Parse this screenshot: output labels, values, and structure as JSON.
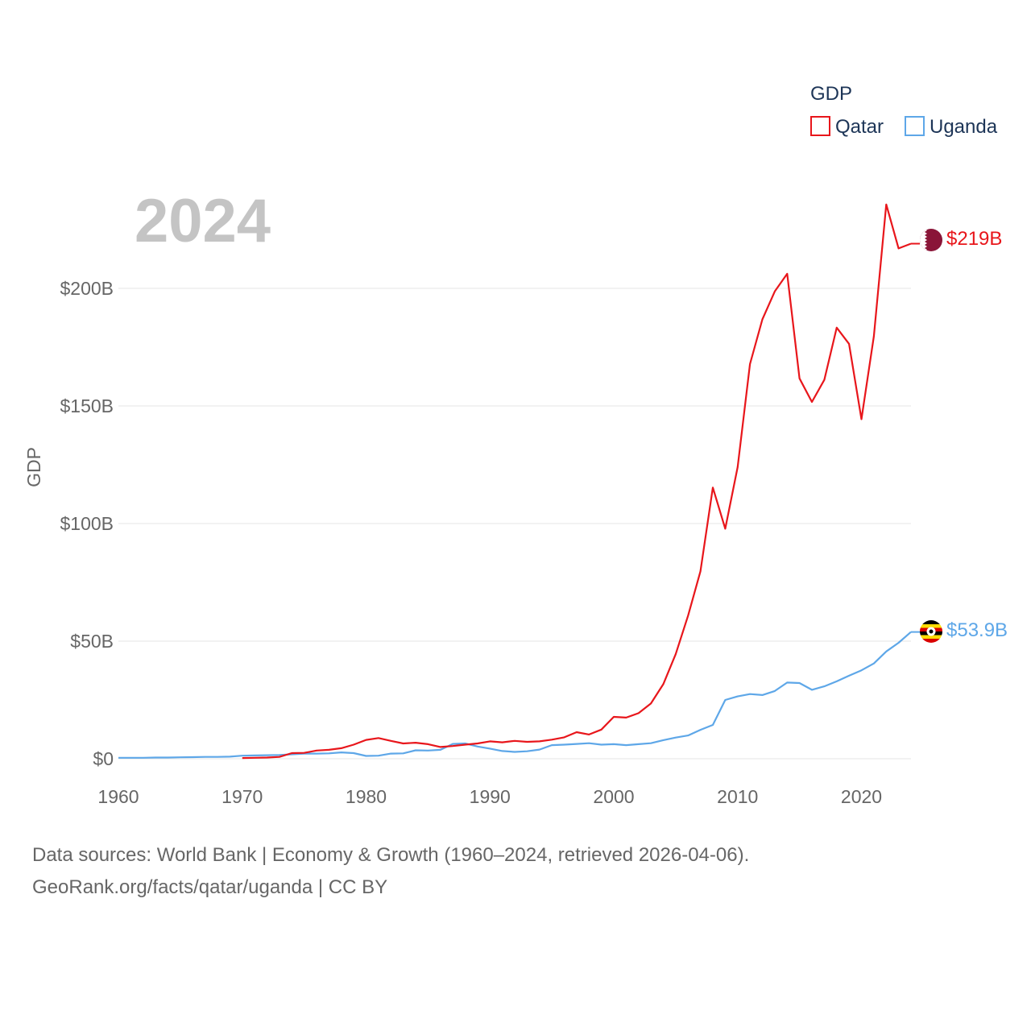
{
  "chart_data": {
    "type": "line",
    "title": "GDP",
    "year_label": "2024",
    "ylabel": "GDP",
    "xlabel": "",
    "xlim": [
      1960,
      2024
    ],
    "ylim": [
      0,
      230
    ],
    "y_ticks": [
      0,
      50,
      100,
      150,
      200
    ],
    "y_tick_labels": [
      "$0",
      "$50B",
      "$100B",
      "$150B",
      "$200B"
    ],
    "x_ticks": [
      1960,
      1970,
      1980,
      1990,
      2000,
      2010,
      2020
    ],
    "x_tick_labels": [
      "1960",
      "1970",
      "1980",
      "1990",
      "2000",
      "2010",
      "2020"
    ],
    "legend": {
      "title": "GDP",
      "position": "top-right",
      "entries": [
        "Qatar",
        "Uganda"
      ]
    },
    "series": [
      {
        "name": "Qatar",
        "color": "#e8161b",
        "end_label": "$219B",
        "flag": "qatar-flag",
        "x": [
          1970,
          1971,
          1972,
          1973,
          1974,
          1975,
          1976,
          1977,
          1978,
          1979,
          1980,
          1981,
          1982,
          1983,
          1984,
          1985,
          1986,
          1987,
          1988,
          1989,
          1990,
          1991,
          1992,
          1993,
          1994,
          1995,
          1996,
          1997,
          1998,
          1999,
          2000,
          2001,
          2002,
          2003,
          2004,
          2005,
          2006,
          2007,
          2008,
          2009,
          2010,
          2011,
          2012,
          2013,
          2014,
          2015,
          2016,
          2017,
          2018,
          2019,
          2020,
          2021,
          2022,
          2023,
          2024
        ],
        "values": [
          0.3,
          0.4,
          0.5,
          0.8,
          2.4,
          2.5,
          3.5,
          3.8,
          4.5,
          6.0,
          8.0,
          8.8,
          7.6,
          6.5,
          6.8,
          6.2,
          5.0,
          5.4,
          6.0,
          6.5,
          7.4,
          7.0,
          7.6,
          7.2,
          7.4,
          8.1,
          9.1,
          11.3,
          10.3,
          12.4,
          17.8,
          17.5,
          19.4,
          23.5,
          31.7,
          44.5,
          60.9,
          79.7,
          115.3,
          97.8,
          124.0,
          167.8,
          186.8,
          198.7,
          206.2,
          161.7,
          151.7,
          161.1,
          183.3,
          176.4,
          144.4,
          179.6,
          235.7,
          217.0,
          219.0
        ]
      },
      {
        "name": "Uganda",
        "color": "#5ea7e8",
        "end_label": "$53.9B",
        "flag": "uganda-flag",
        "x": [
          1960,
          1961,
          1962,
          1963,
          1964,
          1965,
          1966,
          1967,
          1968,
          1969,
          1970,
          1971,
          1972,
          1973,
          1974,
          1975,
          1976,
          1977,
          1978,
          1979,
          1980,
          1981,
          1982,
          1983,
          1984,
          1985,
          1986,
          1987,
          1988,
          1989,
          1990,
          1991,
          1992,
          1993,
          1994,
          1995,
          1996,
          1997,
          1998,
          1999,
          2000,
          2001,
          2002,
          2003,
          2004,
          2005,
          2006,
          2007,
          2008,
          2009,
          2010,
          2011,
          2012,
          2013,
          2014,
          2015,
          2016,
          2017,
          2018,
          2019,
          2020,
          2021,
          2022,
          2023,
          2024
        ],
        "values": [
          0.4,
          0.4,
          0.4,
          0.5,
          0.5,
          0.6,
          0.7,
          0.8,
          0.8,
          0.9,
          1.3,
          1.4,
          1.5,
          1.6,
          1.9,
          2.2,
          2.2,
          2.3,
          2.7,
          2.4,
          1.2,
          1.3,
          2.2,
          2.3,
          3.6,
          3.5,
          3.8,
          6.3,
          6.5,
          5.2,
          4.3,
          3.3,
          2.9,
          3.2,
          3.9,
          5.8,
          6.0,
          6.3,
          6.6,
          6.0,
          6.2,
          5.8,
          6.2,
          6.6,
          7.9,
          9.0,
          9.9,
          12.3,
          14.4,
          25.0,
          26.5,
          27.5,
          27.1,
          28.8,
          32.4,
          32.2,
          29.3,
          30.8,
          32.9,
          35.3,
          37.6,
          40.5,
          45.6,
          49.3,
          53.9
        ]
      }
    ]
  },
  "footer": {
    "line1": "Data sources: World Bank | Economy & Growth (1960–2024, retrieved 2026-04-06).",
    "line2": "GeoRank.org/facts/qatar/uganda | CC BY"
  }
}
